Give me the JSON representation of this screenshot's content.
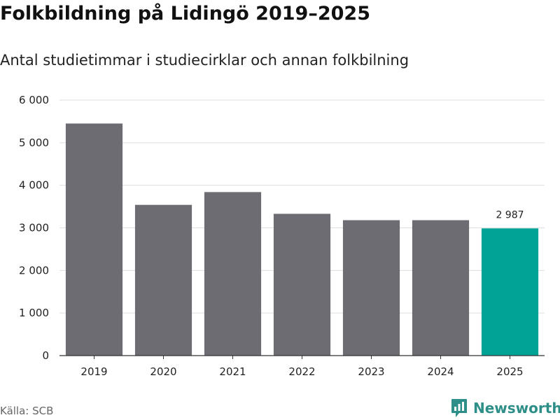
{
  "header": {
    "title": "Folkbildning på Lidingö 2019–2025",
    "subtitle": "Antal studietimmar i studiecirklar och annan folkbilning"
  },
  "footer": {
    "source": "Källa: SCB",
    "brand": "Newsworthy",
    "brand_icon": "newsworthy-logo-icon"
  },
  "colors": {
    "bar": "#6d6c72",
    "highlight": "#00a396",
    "grid": "#dedede",
    "axis": "#333333",
    "brand": "#2e8f88"
  },
  "chart_data": {
    "type": "bar",
    "title": "Folkbildning på Lidingö 2019–2025",
    "subtitle": "Antal studietimmar i studiecirklar och annan folkbilning",
    "xlabel": "",
    "ylabel": "",
    "categories": [
      "2019",
      "2020",
      "2021",
      "2022",
      "2023",
      "2024",
      "2025"
    ],
    "values": [
      5450,
      3540,
      3840,
      3330,
      3180,
      3180,
      2987
    ],
    "highlight_index": 6,
    "data_labels": [
      {
        "index": 6,
        "text": "2 987"
      }
    ],
    "ylim": [
      0,
      6000
    ],
    "yticks": [
      0,
      1000,
      2000,
      3000,
      4000,
      5000,
      6000
    ],
    "ytick_labels": [
      "0",
      "1 000",
      "2 000",
      "3 000",
      "4 000",
      "5 000",
      "6 000"
    ],
    "grid": true,
    "legend": "none"
  }
}
